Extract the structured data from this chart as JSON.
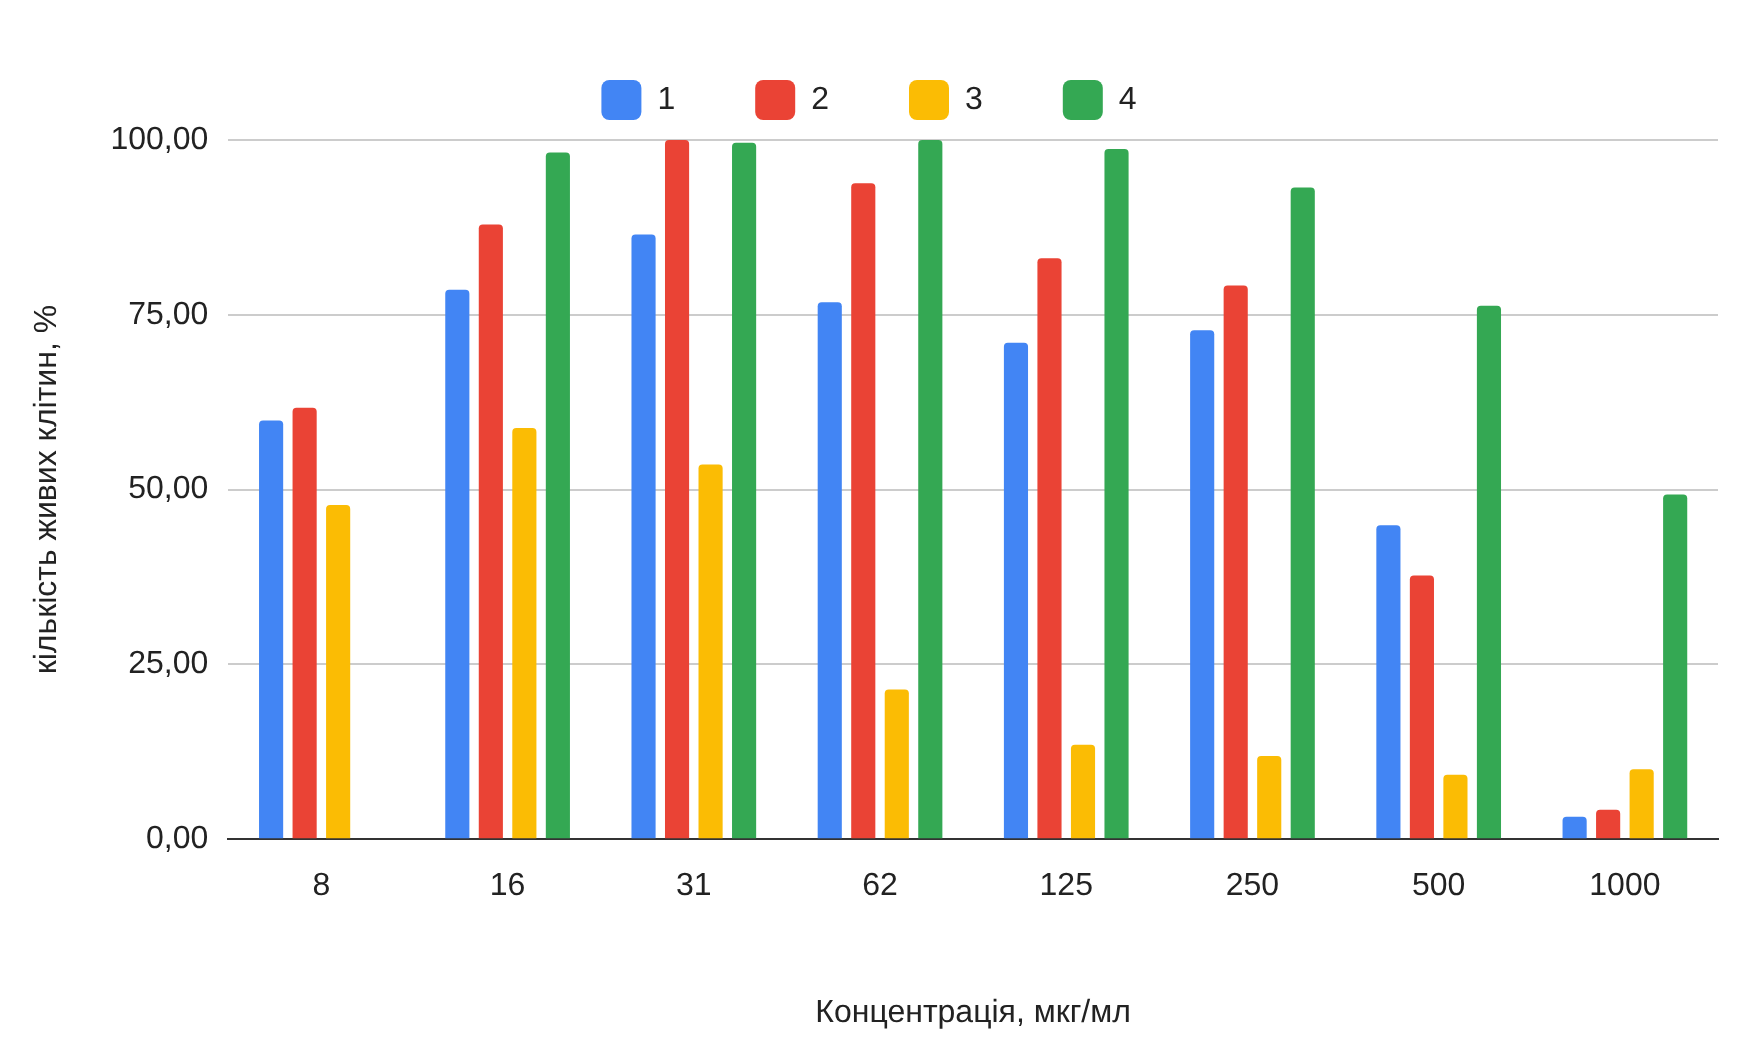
{
  "chart_data": {
    "type": "bar",
    "xlabel": "Концентрація, мкг/мл",
    "ylabel": "кількість живих клітин, %",
    "categories": [
      "8",
      "16",
      "31",
      "62",
      "125",
      "250",
      "500",
      "1000"
    ],
    "series": [
      {
        "name": "1",
        "color": "#4285f4",
        "values": [
          59.9,
          78.6,
          86.5,
          76.8,
          71,
          72.8,
          44.9,
          3.2
        ]
      },
      {
        "name": "2",
        "color": "#ea4335",
        "values": [
          61.7,
          87.9,
          100,
          93.8,
          83.1,
          79.2,
          37.7,
          4.2
        ]
      },
      {
        "name": "3",
        "color": "#fbbc04",
        "values": [
          47.8,
          58.8,
          53.6,
          21.4,
          13.5,
          11.9,
          9.2,
          10
        ]
      },
      {
        "name": "4",
        "color": "#34a853",
        "values": [
          null,
          98.2,
          99.6,
          100,
          98.7,
          93.2,
          76.3,
          49.3
        ]
      }
    ],
    "ylim": [
      0,
      100
    ],
    "yticks": [
      {
        "value": 0,
        "label": "0,00"
      },
      {
        "value": 25,
        "label": "25,00"
      },
      {
        "value": 50,
        "label": "50,00"
      },
      {
        "value": 75,
        "label": "75,00"
      },
      {
        "value": 100,
        "label": "100,00"
      }
    ],
    "grid": "y",
    "legend": "top"
  }
}
